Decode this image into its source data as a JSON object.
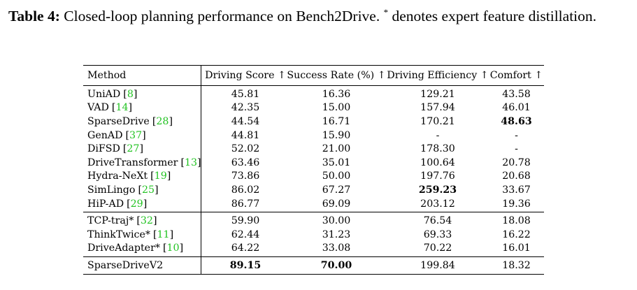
{
  "caption": {
    "label": "Table 4:",
    "text_before_sup": " Closed-loop planning performance on Bench2Drive. ",
    "sup": "*",
    "text_after_sup": " denotes expert feature distillation."
  },
  "table": {
    "headers": [
      "Method",
      "Driving Score ↑",
      "Success Rate (%) ↑",
      "Driving Efficiency ↑",
      "Comfort ↑"
    ],
    "groups": [
      [
        {
          "method": "UniAD",
          "ref": "8",
          "ds": "45.81",
          "sr": "16.36",
          "de": "129.21",
          "co": "43.58"
        },
        {
          "method": "VAD",
          "ref": "14",
          "ds": "42.35",
          "sr": "15.00",
          "de": "157.94",
          "co": "46.01"
        },
        {
          "method": "SparseDrive",
          "ref": "28",
          "ds": "44.54",
          "sr": "16.71",
          "de": "170.21",
          "co": "48.63",
          "bold": [
            "co"
          ]
        },
        {
          "method": "GenAD",
          "ref": "37",
          "ds": "44.81",
          "sr": "15.90",
          "de": "-",
          "co": "-"
        },
        {
          "method": "DiFSD",
          "ref": "27",
          "ds": "52.02",
          "sr": "21.00",
          "de": "178.30",
          "co": "-"
        },
        {
          "method": "DriveTransformer",
          "ref": "13",
          "ds": "63.46",
          "sr": "35.01",
          "de": "100.64",
          "co": "20.78"
        },
        {
          "method": "Hydra-NeXt",
          "ref": "19",
          "ds": "73.86",
          "sr": "50.00",
          "de": "197.76",
          "co": "20.68"
        },
        {
          "method": "SimLingo",
          "ref": "25",
          "ds": "86.02",
          "sr": "67.27",
          "de": "259.23",
          "co": "33.67",
          "bold": [
            "de"
          ]
        },
        {
          "method": "HiP-AD",
          "ref": "29",
          "ds": "86.77",
          "sr": "69.09",
          "de": "203.12",
          "co": "19.36"
        }
      ],
      [
        {
          "method": "TCP-traj*",
          "ref": "32",
          "ds": "59.90",
          "sr": "30.00",
          "de": "76.54",
          "co": "18.08"
        },
        {
          "method": "ThinkTwice*",
          "ref": "11",
          "ds": "62.44",
          "sr": "31.23",
          "de": "69.33",
          "co": "16.22"
        },
        {
          "method": "DriveAdapter*",
          "ref": "10",
          "ds": "64.22",
          "sr": "33.08",
          "de": "70.22",
          "co": "16.01"
        }
      ],
      [
        {
          "method": "SparseDriveV2",
          "ref": "",
          "ds": "89.15",
          "sr": "70.00",
          "de": "199.84",
          "co": "18.32",
          "bold": [
            "ds",
            "sr"
          ]
        }
      ]
    ]
  }
}
